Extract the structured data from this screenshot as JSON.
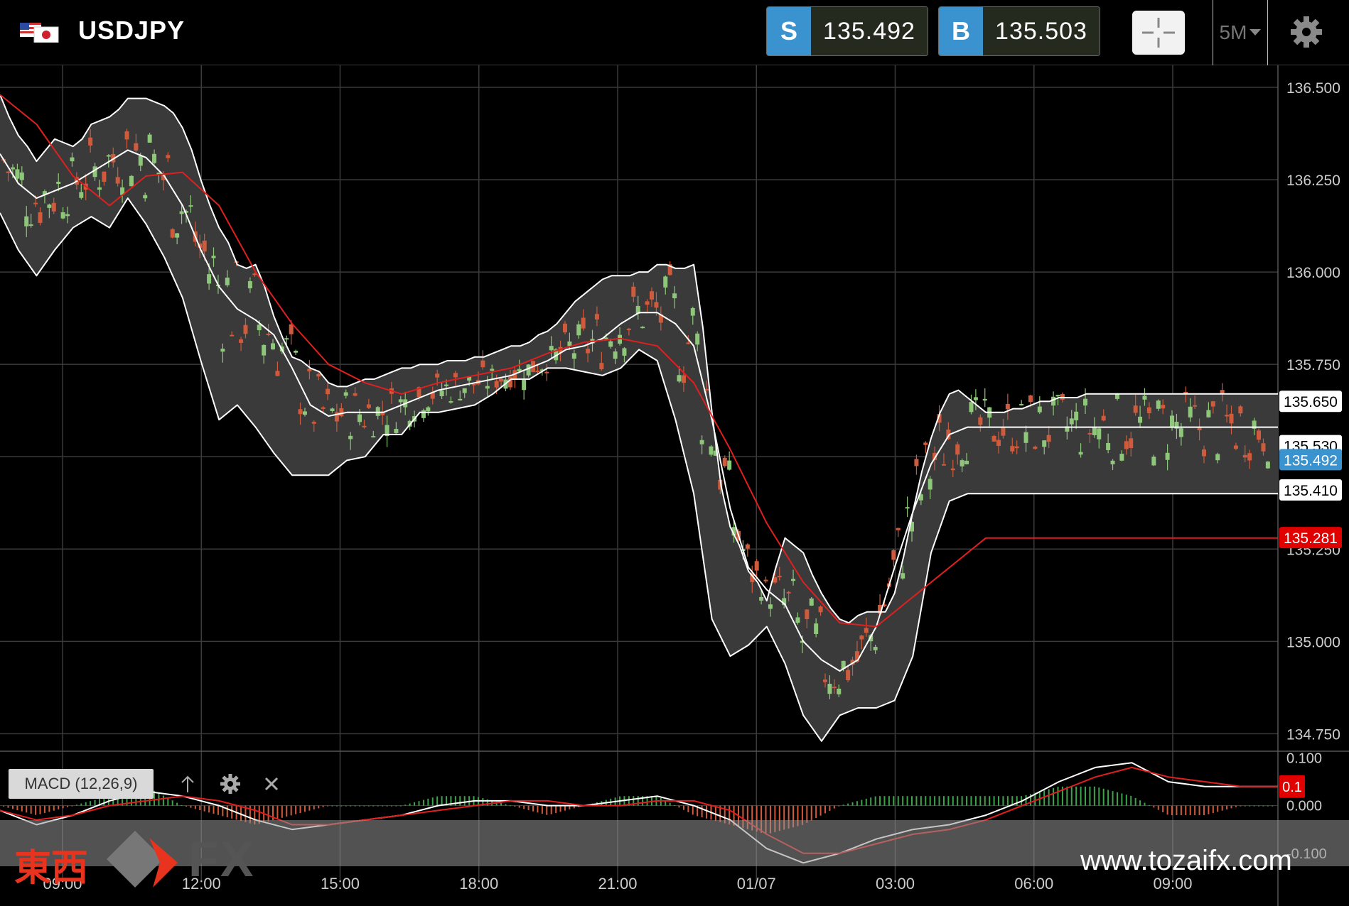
{
  "header": {
    "symbol": "USDJPY",
    "sell_label": "S",
    "sell_price": "135.492",
    "buy_label": "B",
    "buy_price": "135.503",
    "timeframe": "5M",
    "icons": [
      "flag-us-jp-icon",
      "crosshair-icon",
      "chevron-down-icon",
      "gear-icon"
    ]
  },
  "indicator": {
    "label": "MACD (12,26,9)",
    "badge": "0.1",
    "icons": [
      "arrow-up-icon",
      "gear-icon",
      "close-icon"
    ]
  },
  "watermark": {
    "brand_cjk": "東西",
    "brand_fx": "FX",
    "url": "www.tozaifx.com"
  },
  "colors": {
    "background": "#000000",
    "grid": "#3b3b3b",
    "up_candle": "#8fc77a",
    "down_candle": "#d05a3c",
    "bollinger": "#ffffff",
    "band_fill": "#3a3a3a",
    "ma_red": "#e02020",
    "sell_blue": "#3a93cf",
    "badge_red": "#e00000"
  },
  "chart_data": [
    {
      "type": "candlestick",
      "symbol": "USDJPY",
      "timeframe": "5M",
      "indicators": [
        "Bollinger Bands",
        "Moving Average (red)"
      ],
      "x_ticks": [
        "09:00",
        "12:00",
        "15:00",
        "18:00",
        "21:00",
        "01/07",
        "03:00",
        "06:00",
        "09:00"
      ],
      "y_ticks": [
        "134.750",
        "135.000",
        "135.250",
        "135.500",
        "135.750",
        "136.000",
        "136.250",
        "136.500"
      ],
      "ylim": [
        134.72,
        136.55
      ],
      "grid": true,
      "price_labels": [
        {
          "value": "135.650"
        },
        {
          "value": "135.530"
        },
        {
          "value": "135.492"
        },
        {
          "value": "135.410"
        },
        {
          "value": "135.281"
        }
      ],
      "series": [
        {
          "name": "Bollinger upper",
          "x": [
            0,
            0.5,
            1,
            1.5,
            2,
            2.5,
            3,
            3.5,
            4,
            4.5,
            5,
            5.5,
            6,
            6.5,
            7,
            7.5,
            8,
            8.5,
            9,
            9.5,
            10,
            10.5,
            11,
            11.5,
            12,
            12.5,
            13,
            13.5,
            14,
            14.5,
            15,
            15.5,
            16,
            16.5,
            17,
            17.5,
            18,
            18.5,
            19,
            19.5,
            20,
            20.5,
            21,
            21.5,
            22,
            22.5,
            23,
            23.5,
            24,
            24.5,
            25,
            25.5,
            26,
            26.5,
            27,
            27.5,
            28,
            28.5,
            29,
            29.5,
            30,
            30.5,
            31,
            31.5,
            32,
            32.5,
            33,
            33.5,
            34,
            34.5,
            35,
            35.5,
            36,
            36.5,
            37,
            37.5,
            38,
            38.5,
            39,
            39.5,
            40,
            40.5,
            41,
            41.5,
            42,
            42.5,
            43,
            43.5,
            44,
            44.5,
            45,
            45.5,
            46,
            46.5,
            47,
            47.5,
            48,
            48.5,
            49,
            49.5,
            50,
            50.5,
            51,
            51.5,
            52,
            52.5,
            53,
            53.5,
            54,
            54.5,
            55,
            55.5,
            56,
            56.5,
            57,
            57.5,
            58,
            58.5,
            59,
            59.5,
            60,
            60.5,
            61,
            61.5,
            62,
            62.5,
            63,
            63.5,
            64,
            64.5,
            65,
            65.5,
            66,
            66.5,
            67,
            67.5,
            68,
            68.5,
            69,
            69.5,
            70
          ],
          "values": [
            136.48,
            136.42,
            136.37,
            136.34,
            136.3,
            136.33,
            136.36,
            136.35,
            136.34,
            136.36,
            136.4,
            136.41,
            136.42,
            136.44,
            136.47,
            136.47,
            136.47,
            136.46,
            136.45,
            136.43,
            136.39,
            136.33,
            136.25,
            136.18,
            136.12,
            136.08,
            136.02,
            136.01,
            136.02,
            135.96,
            135.88,
            135.82,
            135.77,
            135.76,
            135.74,
            135.73,
            135.7,
            135.69,
            135.69,
            135.7,
            135.71,
            135.71,
            135.72,
            135.73,
            135.74,
            135.74,
            135.75,
            135.75,
            135.75,
            135.76,
            135.76,
            135.76,
            135.77,
            135.77,
            135.78,
            135.79,
            135.8,
            135.8,
            135.81,
            135.83,
            135.84,
            135.86,
            135.89,
            135.92,
            135.94,
            135.96,
            135.98,
            135.99,
            135.99,
            135.99,
            136.0,
            136.0,
            136.02,
            136.02,
            136.01,
            136.01,
            136.02,
            135.85,
            135.62,
            135.42,
            135.31,
            135.26,
            135.19,
            135.16,
            135.11,
            135.2,
            135.28,
            135.26,
            135.24,
            135.18,
            135.13,
            135.09,
            135.06,
            135.05,
            135.07,
            135.08,
            135.08,
            135.08,
            135.13,
            135.23,
            135.35,
            135.46,
            135.55,
            135.62,
            135.67,
            135.68,
            135.66,
            135.64,
            135.62,
            135.62,
            135.62,
            135.63,
            135.63,
            135.64,
            135.65,
            135.65,
            135.66,
            135.66,
            135.66,
            135.67,
            135.67,
            135.67,
            135.67,
            135.67,
            135.67,
            135.67,
            135.67,
            135.67,
            135.67,
            135.67,
            135.67,
            135.67,
            135.67,
            135.67,
            135.67,
            135.67,
            135.67,
            135.67,
            135.67,
            135.67,
            135.67
          ]
        },
        {
          "name": "Bollinger middle",
          "x": [
            0,
            1,
            2,
            3,
            4,
            5,
            6,
            7,
            8,
            9,
            10,
            11,
            12,
            13,
            14,
            15,
            16,
            17,
            18,
            19,
            20,
            21,
            22,
            23,
            24,
            25,
            26,
            27,
            28,
            29,
            30,
            31,
            32,
            33,
            34,
            35,
            36,
            37,
            38,
            39,
            40,
            41,
            42,
            43,
            44,
            45,
            46,
            47,
            48,
            49,
            50,
            51,
            52,
            53,
            54,
            55,
            56,
            57,
            58,
            59,
            60,
            61,
            62,
            63,
            64,
            65,
            66,
            67,
            68,
            69,
            70
          ],
          "values": [
            136.32,
            136.24,
            136.2,
            136.22,
            136.24,
            136.27,
            136.3,
            136.33,
            136.31,
            136.26,
            136.18,
            136.06,
            135.96,
            135.9,
            135.87,
            135.83,
            135.74,
            135.64,
            135.61,
            135.62,
            135.62,
            135.62,
            135.64,
            135.66,
            135.68,
            135.69,
            135.7,
            135.71,
            135.72,
            135.74,
            135.76,
            135.79,
            135.8,
            135.82,
            135.86,
            135.89,
            135.89,
            135.86,
            135.8,
            135.6,
            135.36,
            135.2,
            135.14,
            135.1,
            135.0,
            134.95,
            134.92,
            134.95,
            135.04,
            135.2,
            135.35,
            135.48,
            135.56,
            135.58,
            135.58,
            135.58,
            135.58,
            135.58,
            135.58,
            135.58,
            135.58,
            135.58,
            135.58,
            135.58,
            135.58,
            135.58,
            135.58,
            135.58,
            135.58,
            135.58,
            135.58
          ]
        },
        {
          "name": "Bollinger lower",
          "x": [
            0,
            1,
            2,
            3,
            4,
            5,
            6,
            7,
            8,
            9,
            10,
            11,
            12,
            13,
            14,
            15,
            16,
            17,
            18,
            19,
            20,
            21,
            22,
            23,
            24,
            25,
            26,
            27,
            28,
            29,
            30,
            31,
            32,
            33,
            34,
            35,
            36,
            37,
            38,
            39,
            40,
            41,
            42,
            43,
            44,
            45,
            46,
            47,
            48,
            49,
            50,
            51,
            52,
            53,
            54,
            55,
            56,
            57,
            58,
            59,
            60,
            61,
            62,
            63,
            64,
            65,
            66,
            67,
            68,
            69,
            70
          ],
          "values": [
            136.16,
            136.06,
            135.99,
            136.06,
            136.12,
            136.15,
            136.12,
            136.2,
            136.13,
            136.04,
            135.93,
            135.76,
            135.6,
            135.64,
            135.58,
            135.51,
            135.45,
            135.45,
            135.45,
            135.49,
            135.5,
            135.56,
            135.56,
            135.62,
            135.62,
            135.63,
            135.64,
            135.67,
            135.71,
            135.71,
            135.74,
            135.74,
            135.73,
            135.72,
            135.74,
            135.79,
            135.76,
            135.6,
            135.4,
            135.06,
            134.96,
            134.99,
            135.04,
            134.94,
            134.8,
            134.73,
            134.8,
            134.82,
            134.82,
            134.84,
            134.96,
            135.24,
            135.38,
            135.4,
            135.4,
            135.4,
            135.4,
            135.4,
            135.4,
            135.4,
            135.4,
            135.4,
            135.4,
            135.4,
            135.4,
            135.4,
            135.4,
            135.4,
            135.4,
            135.4,
            135.4
          ]
        },
        {
          "name": "Moving average",
          "x": [
            0,
            2,
            4,
            6,
            8,
            10,
            12,
            14,
            16,
            18,
            20,
            22,
            24,
            26,
            28,
            30,
            32,
            34,
            36,
            38,
            40,
            42,
            44,
            46,
            48,
            50,
            52,
            54,
            56,
            58,
            60,
            62,
            64,
            66,
            68,
            70
          ],
          "values": [
            136.48,
            136.4,
            136.26,
            136.18,
            136.26,
            136.27,
            136.18,
            136.0,
            135.86,
            135.75,
            135.7,
            135.67,
            135.7,
            135.72,
            135.74,
            135.78,
            135.81,
            135.82,
            135.8,
            135.7,
            135.52,
            135.32,
            135.16,
            135.05,
            135.04,
            135.12,
            135.2,
            135.28,
            135.28,
            135.28,
            135.28,
            135.28,
            135.28,
            135.28,
            135.28,
            135.28
          ]
        }
      ]
    },
    {
      "type": "line",
      "title": "MACD (12,26,9)",
      "y_ticks": [
        "0.100",
        "0.000",
        "-0.100"
      ],
      "ylim": [
        -0.13,
        0.12
      ],
      "series": [
        {
          "name": "MACD",
          "x": [
            0,
            2,
            4,
            6,
            8,
            10,
            12,
            14,
            16,
            18,
            20,
            22,
            24,
            26,
            28,
            30,
            32,
            34,
            36,
            38,
            40,
            42,
            44,
            46,
            48,
            50,
            52,
            54,
            56,
            58,
            60,
            62,
            64,
            66,
            68,
            70
          ],
          "values": [
            -0.01,
            -0.04,
            -0.02,
            0.01,
            0.03,
            0.02,
            0.0,
            -0.03,
            -0.05,
            -0.04,
            -0.03,
            -0.02,
            0.0,
            0.01,
            0.01,
            0.0,
            0.0,
            0.01,
            0.02,
            0.0,
            -0.03,
            -0.09,
            -0.12,
            -0.1,
            -0.07,
            -0.05,
            -0.04,
            -0.02,
            0.01,
            0.05,
            0.08,
            0.09,
            0.05,
            0.04,
            0.04,
            0.04
          ]
        },
        {
          "name": "Signal",
          "x": [
            0,
            2,
            4,
            6,
            8,
            10,
            12,
            14,
            16,
            18,
            20,
            22,
            24,
            26,
            28,
            30,
            32,
            34,
            36,
            38,
            40,
            42,
            44,
            46,
            48,
            50,
            52,
            54,
            56,
            58,
            60,
            62,
            64,
            66,
            68,
            70
          ],
          "values": [
            -0.01,
            -0.03,
            -0.02,
            0.0,
            0.01,
            0.02,
            0.01,
            -0.01,
            -0.04,
            -0.04,
            -0.03,
            -0.02,
            -0.01,
            0.0,
            0.01,
            0.01,
            0.0,
            0.0,
            0.01,
            0.01,
            -0.01,
            -0.06,
            -0.1,
            -0.1,
            -0.08,
            -0.06,
            -0.05,
            -0.03,
            0.0,
            0.03,
            0.06,
            0.08,
            0.06,
            0.05,
            0.04,
            0.04
          ]
        }
      ]
    }
  ]
}
